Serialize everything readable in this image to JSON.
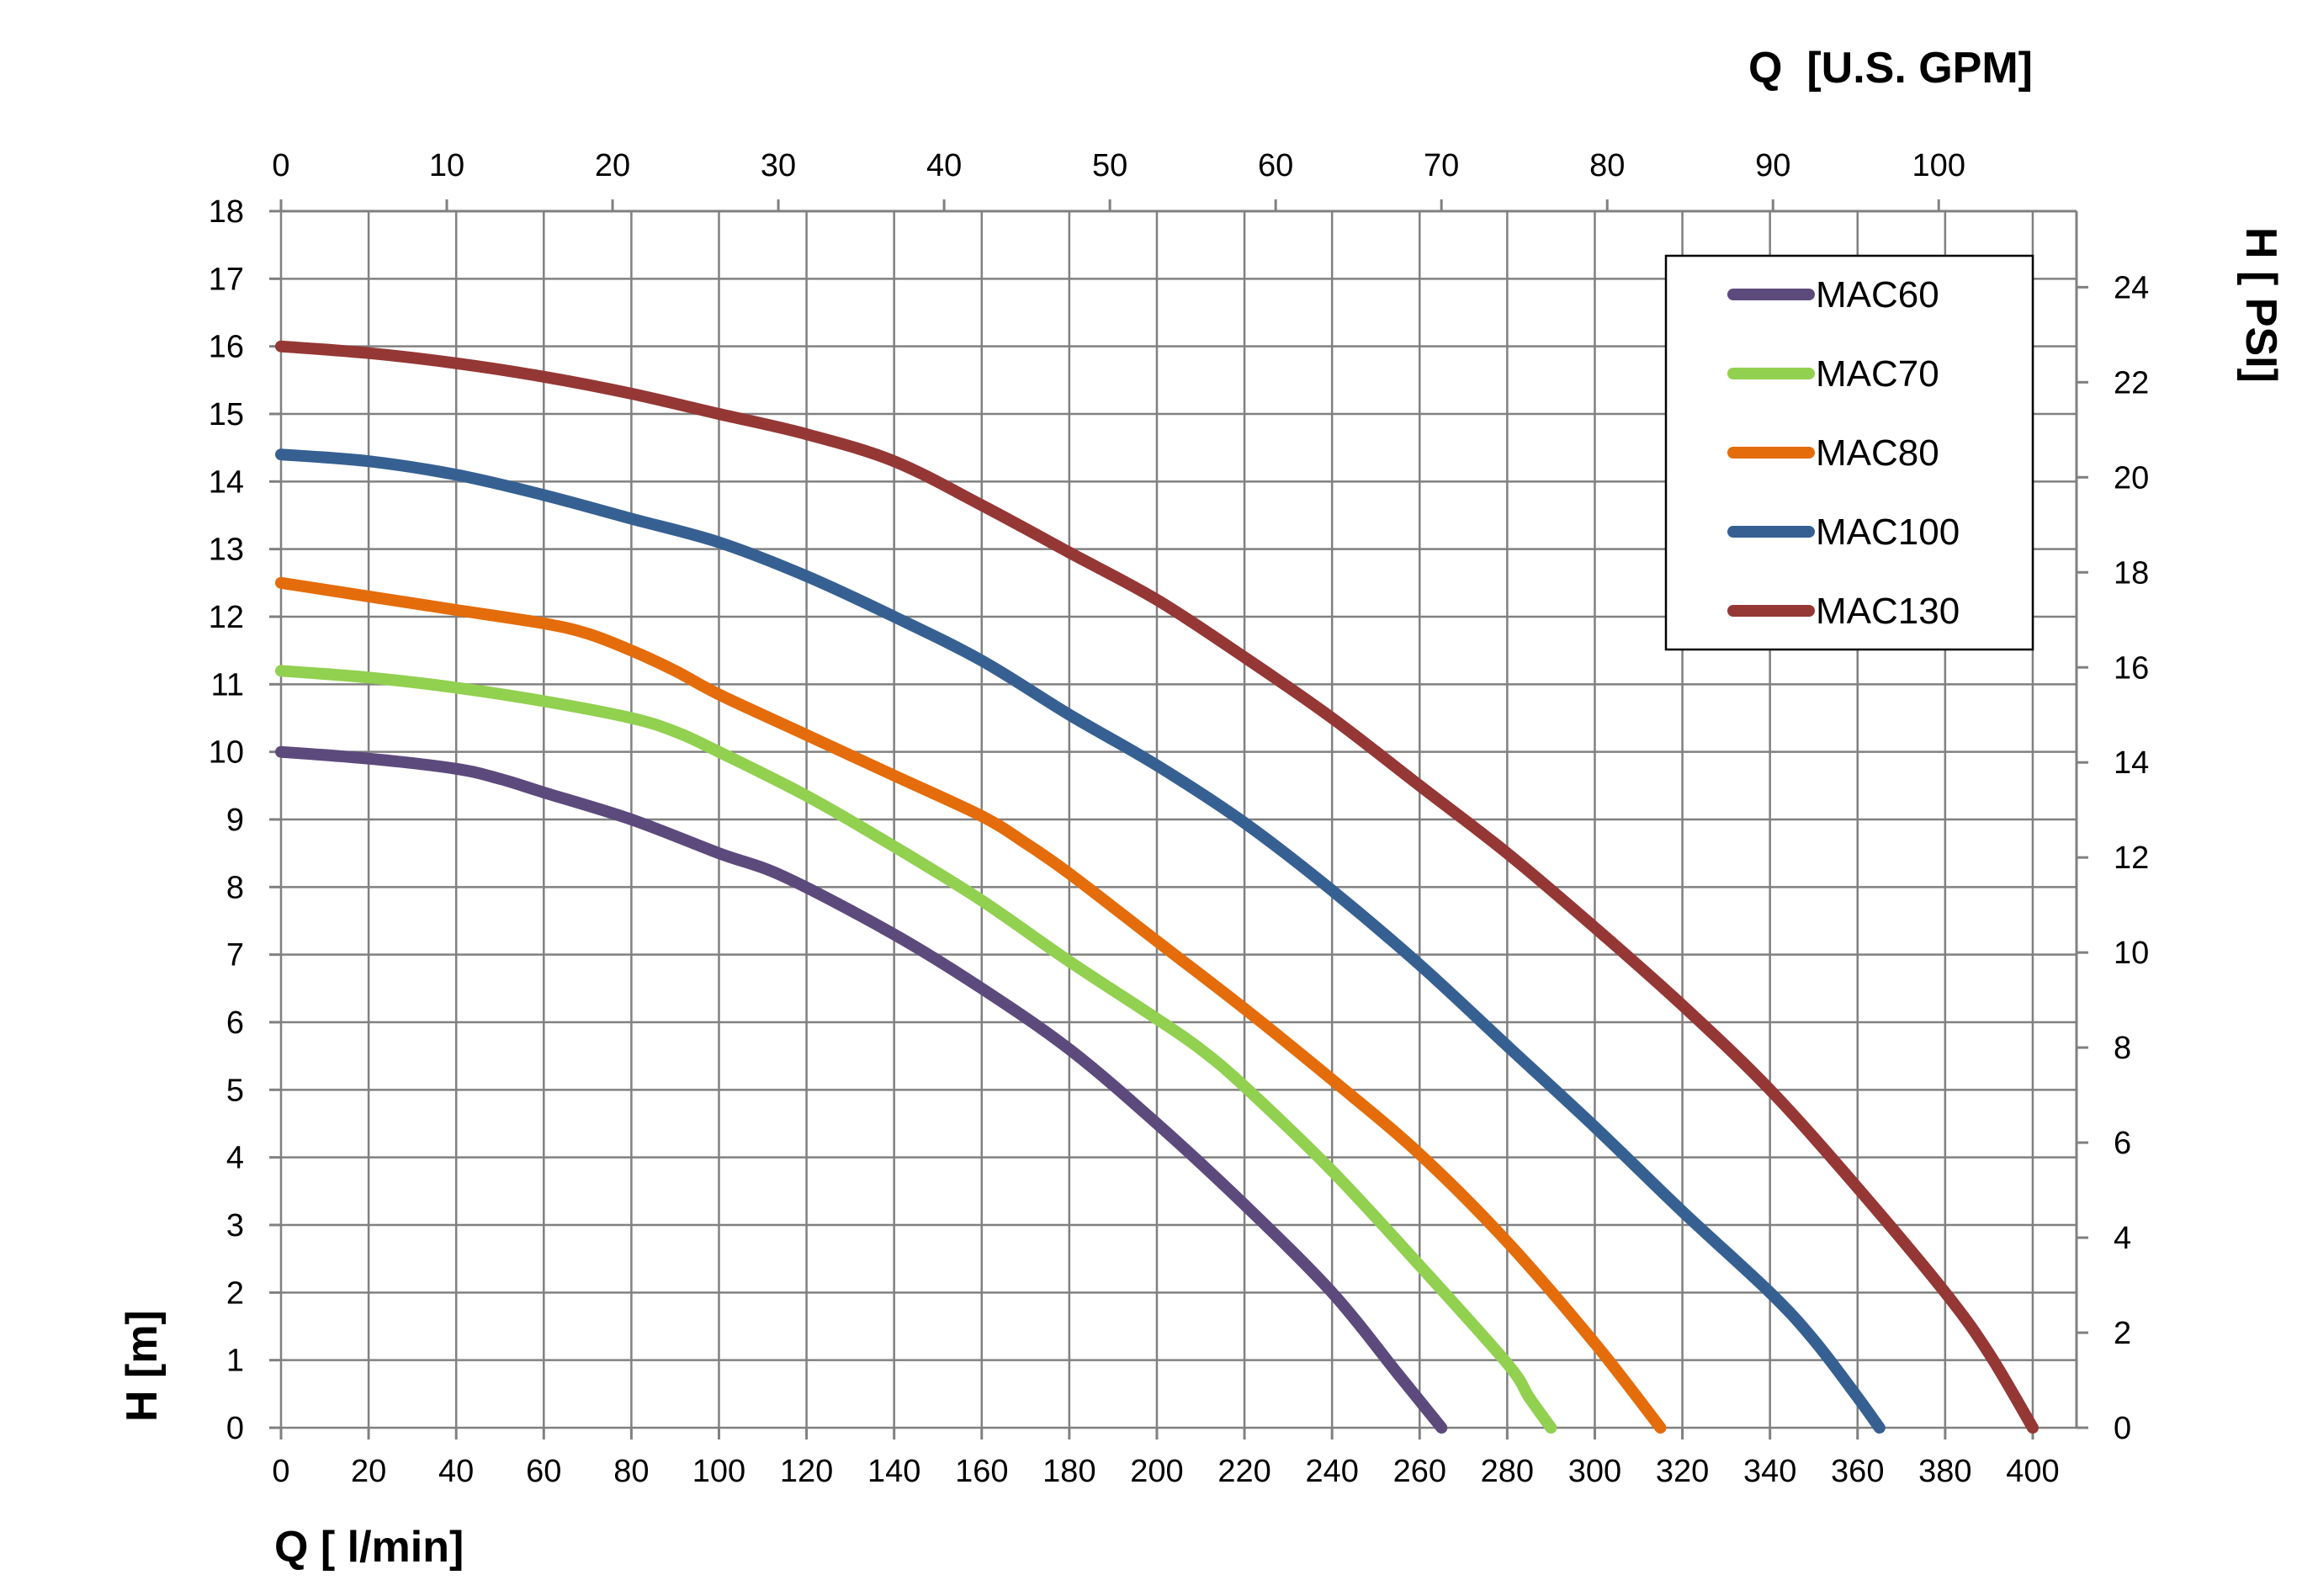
{
  "chart_data": {
    "type": "line",
    "xlabel": "Q [ l/min]",
    "x2label": "Q  [U.S. GPM]",
    "ylabel": "H [m]",
    "y2label": "H [ PSI]",
    "xlim": [
      0,
      410
    ],
    "ylim": [
      0,
      18
    ],
    "x2lim": [
      0,
      110
    ],
    "y2lim": [
      0,
      25.6
    ],
    "x_ticks": [
      "0",
      "20",
      "40",
      "60",
      "80",
      "100",
      "120",
      "140",
      "160",
      "180",
      "200",
      "220",
      "240",
      "260",
      "280",
      "300",
      "320",
      "340",
      "360",
      "380",
      "400"
    ],
    "y_ticks": [
      "0",
      "1",
      "2",
      "3",
      "4",
      "5",
      "6",
      "7",
      "8",
      "9",
      "10",
      "11",
      "12",
      "13",
      "14",
      "15",
      "16",
      "17",
      "18"
    ],
    "x2_ticks": [
      "0",
      "10",
      "20",
      "30",
      "40",
      "50",
      "60",
      "70",
      "80",
      "90",
      "100"
    ],
    "y2_ticks": [
      "0",
      "2",
      "4",
      "6",
      "8",
      "10",
      "12",
      "14",
      "16",
      "18",
      "20",
      "22",
      "24"
    ],
    "grid": true,
    "legend_position": "top-right",
    "series": [
      {
        "name": "MAC60",
        "color": "#5d4a7c",
        "x": [
          0,
          20,
          40,
          50,
          60,
          80,
          100,
          115,
          140,
          160,
          180,
          200,
          220,
          240,
          255,
          265
        ],
        "y": [
          10,
          9.9,
          9.75,
          9.6,
          9.4,
          9.0,
          8.5,
          8.15,
          7.3,
          6.5,
          5.6,
          4.5,
          3.3,
          2.0,
          0.8,
          0.0
        ]
      },
      {
        "name": "MAC70",
        "color": "#92d050",
        "x": [
          0,
          20,
          40,
          60,
          80,
          90,
          100,
          120,
          140,
          160,
          180,
          200,
          210,
          220,
          240,
          260,
          280,
          285,
          290
        ],
        "y": [
          11.2,
          11.1,
          10.95,
          10.75,
          10.5,
          10.3,
          10.0,
          9.35,
          8.6,
          7.8,
          6.9,
          6.05,
          5.6,
          5.05,
          3.8,
          2.4,
          0.95,
          0.45,
          0.0
        ]
      },
      {
        "name": "MAC80",
        "color": "#e46c0a",
        "x": [
          0,
          20,
          40,
          60,
          70,
          80,
          90,
          100,
          120,
          140,
          160,
          170,
          180,
          200,
          220,
          240,
          260,
          280,
          300,
          315
        ],
        "y": [
          12.5,
          12.3,
          12.1,
          11.9,
          11.75,
          11.5,
          11.2,
          10.85,
          10.25,
          9.65,
          9.05,
          8.65,
          8.2,
          7.2,
          6.2,
          5.15,
          4.05,
          2.75,
          1.25,
          0.0
        ]
      },
      {
        "name": "MAC100",
        "color": "#366092",
        "x": [
          0,
          20,
          40,
          60,
          80,
          100,
          120,
          140,
          160,
          180,
          200,
          220,
          240,
          260,
          280,
          300,
          320,
          340,
          350,
          360,
          365
        ],
        "y": [
          14.4,
          14.3,
          14.1,
          13.8,
          13.45,
          13.1,
          12.6,
          12.0,
          11.35,
          10.55,
          9.8,
          8.95,
          7.95,
          6.85,
          5.65,
          4.45,
          3.2,
          2.0,
          1.3,
          0.45,
          0.0
        ]
      },
      {
        "name": "MAC130",
        "color": "#953735",
        "x": [
          0,
          20,
          40,
          60,
          80,
          100,
          120,
          140,
          160,
          180,
          200,
          220,
          240,
          260,
          280,
          300,
          320,
          340,
          360,
          380,
          390,
          400
        ],
        "y": [
          16,
          15.9,
          15.75,
          15.55,
          15.3,
          15.0,
          14.7,
          14.3,
          13.65,
          12.95,
          12.25,
          11.4,
          10.5,
          9.5,
          8.5,
          7.4,
          6.25,
          5.0,
          3.55,
          2.0,
          1.1,
          0.0
        ]
      }
    ]
  }
}
